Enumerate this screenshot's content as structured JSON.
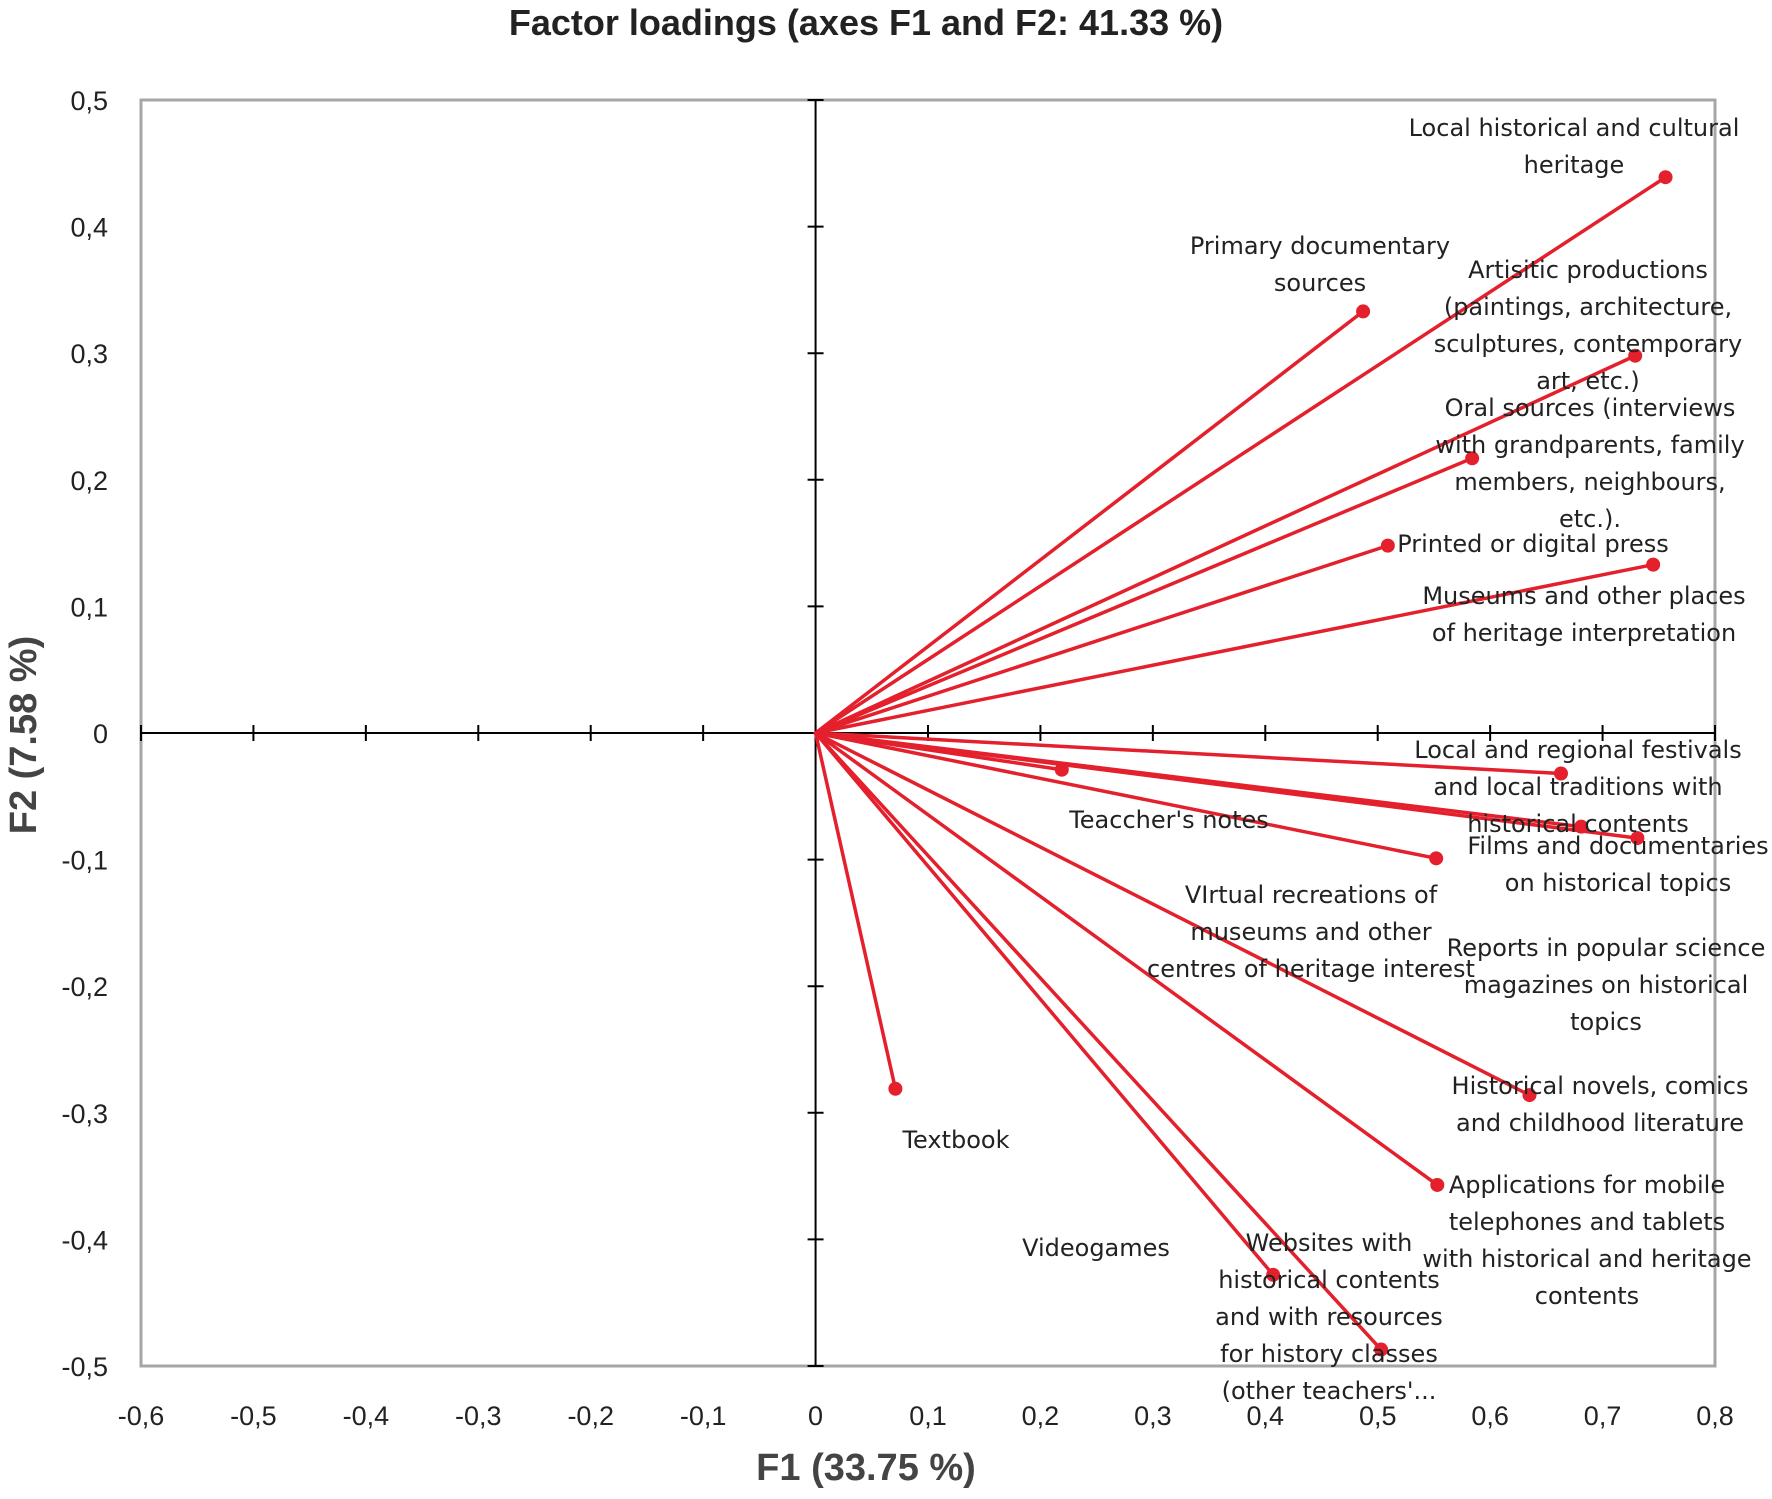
{
  "chart_data": {
    "type": "scatter",
    "title": "Factor loadings (axes F1 and F2: 41.33 %)",
    "xlabel": "F1 (33.75 %)",
    "ylabel": "F2 (7.58 %)",
    "xlim": [
      -0.6,
      0.8
    ],
    "ylim": [
      -0.5,
      0.5
    ],
    "x_ticks": [
      "-0,6",
      "-0,5",
      "-0,4",
      "-0,3",
      "-0,2",
      "-0,1",
      "0",
      "0,1",
      "0,2",
      "0,3",
      "0,4",
      "0,5",
      "0,6",
      "0,7",
      "0,8"
    ],
    "y_ticks": [
      "0,5",
      "0,4",
      "0,3",
      "0,2",
      "0,1",
      "0",
      "-0,1",
      "-0,2",
      "-0,3",
      "-0,4",
      "-0,5"
    ],
    "color": "#e3202c",
    "grid": false,
    "points": [
      {
        "x": 0.756,
        "y": 0.439,
        "label": [
          "Local historical and cultural",
          "heritage"
        ]
      },
      {
        "x": 0.487,
        "y": 0.333,
        "label": [
          "Primary documentary",
          "sources"
        ]
      },
      {
        "x": 0.729,
        "y": 0.298,
        "label": [
          "Artisitic productions",
          "(paintings, architecture,",
          "sculptures, contemporary",
          "art, etc.)"
        ]
      },
      {
        "x": 0.584,
        "y": 0.217,
        "label": [
          "Oral sources (interviews",
          "with grandparents, family",
          "members, neighbours,",
          "etc.)."
        ]
      },
      {
        "x": 0.509,
        "y": 0.148,
        "label": [
          "Printed or digital press"
        ]
      },
      {
        "x": 0.745,
        "y": 0.133,
        "label": [
          "Museums and other places",
          "of heritage interpretation"
        ]
      },
      {
        "x": 0.663,
        "y": -0.032,
        "label": [
          "Local and regional festivals",
          "and local traditions with",
          "historical contents"
        ]
      },
      {
        "x": 0.219,
        "y": -0.029,
        "label": [
          "Teaccher's notes"
        ]
      },
      {
        "x": 0.681,
        "y": -0.074,
        "label": [
          "Films and documentaries",
          "on historical topics"
        ]
      },
      {
        "x": 0.731,
        "y": -0.083,
        "label": [
          "Reports in popular science",
          "magazines on historical",
          "topics"
        ]
      },
      {
        "x": 0.552,
        "y": -0.099,
        "label": [
          "VIrtual recreations  of",
          "museums and other",
          "centres of heritage interest"
        ]
      },
      {
        "x": 0.635,
        "y": -0.286,
        "label": [
          "Historical novels, comics",
          "and childhood literature"
        ]
      },
      {
        "x": 0.553,
        "y": -0.357,
        "label": [
          "Applications for mobile",
          "telephones and tablets",
          "with historical and heritage",
          "contents"
        ]
      },
      {
        "x": 0.071,
        "y": -0.281,
        "label": [
          "Textbook"
        ]
      },
      {
        "x": 0.407,
        "y": -0.428,
        "label": [
          "Videogames"
        ]
      },
      {
        "x": 0.503,
        "y": -0.487,
        "label": [
          "Websites with",
          "historical contents",
          "and with resources",
          "for history classes",
          "(other teachers'..."
        ]
      }
    ]
  }
}
